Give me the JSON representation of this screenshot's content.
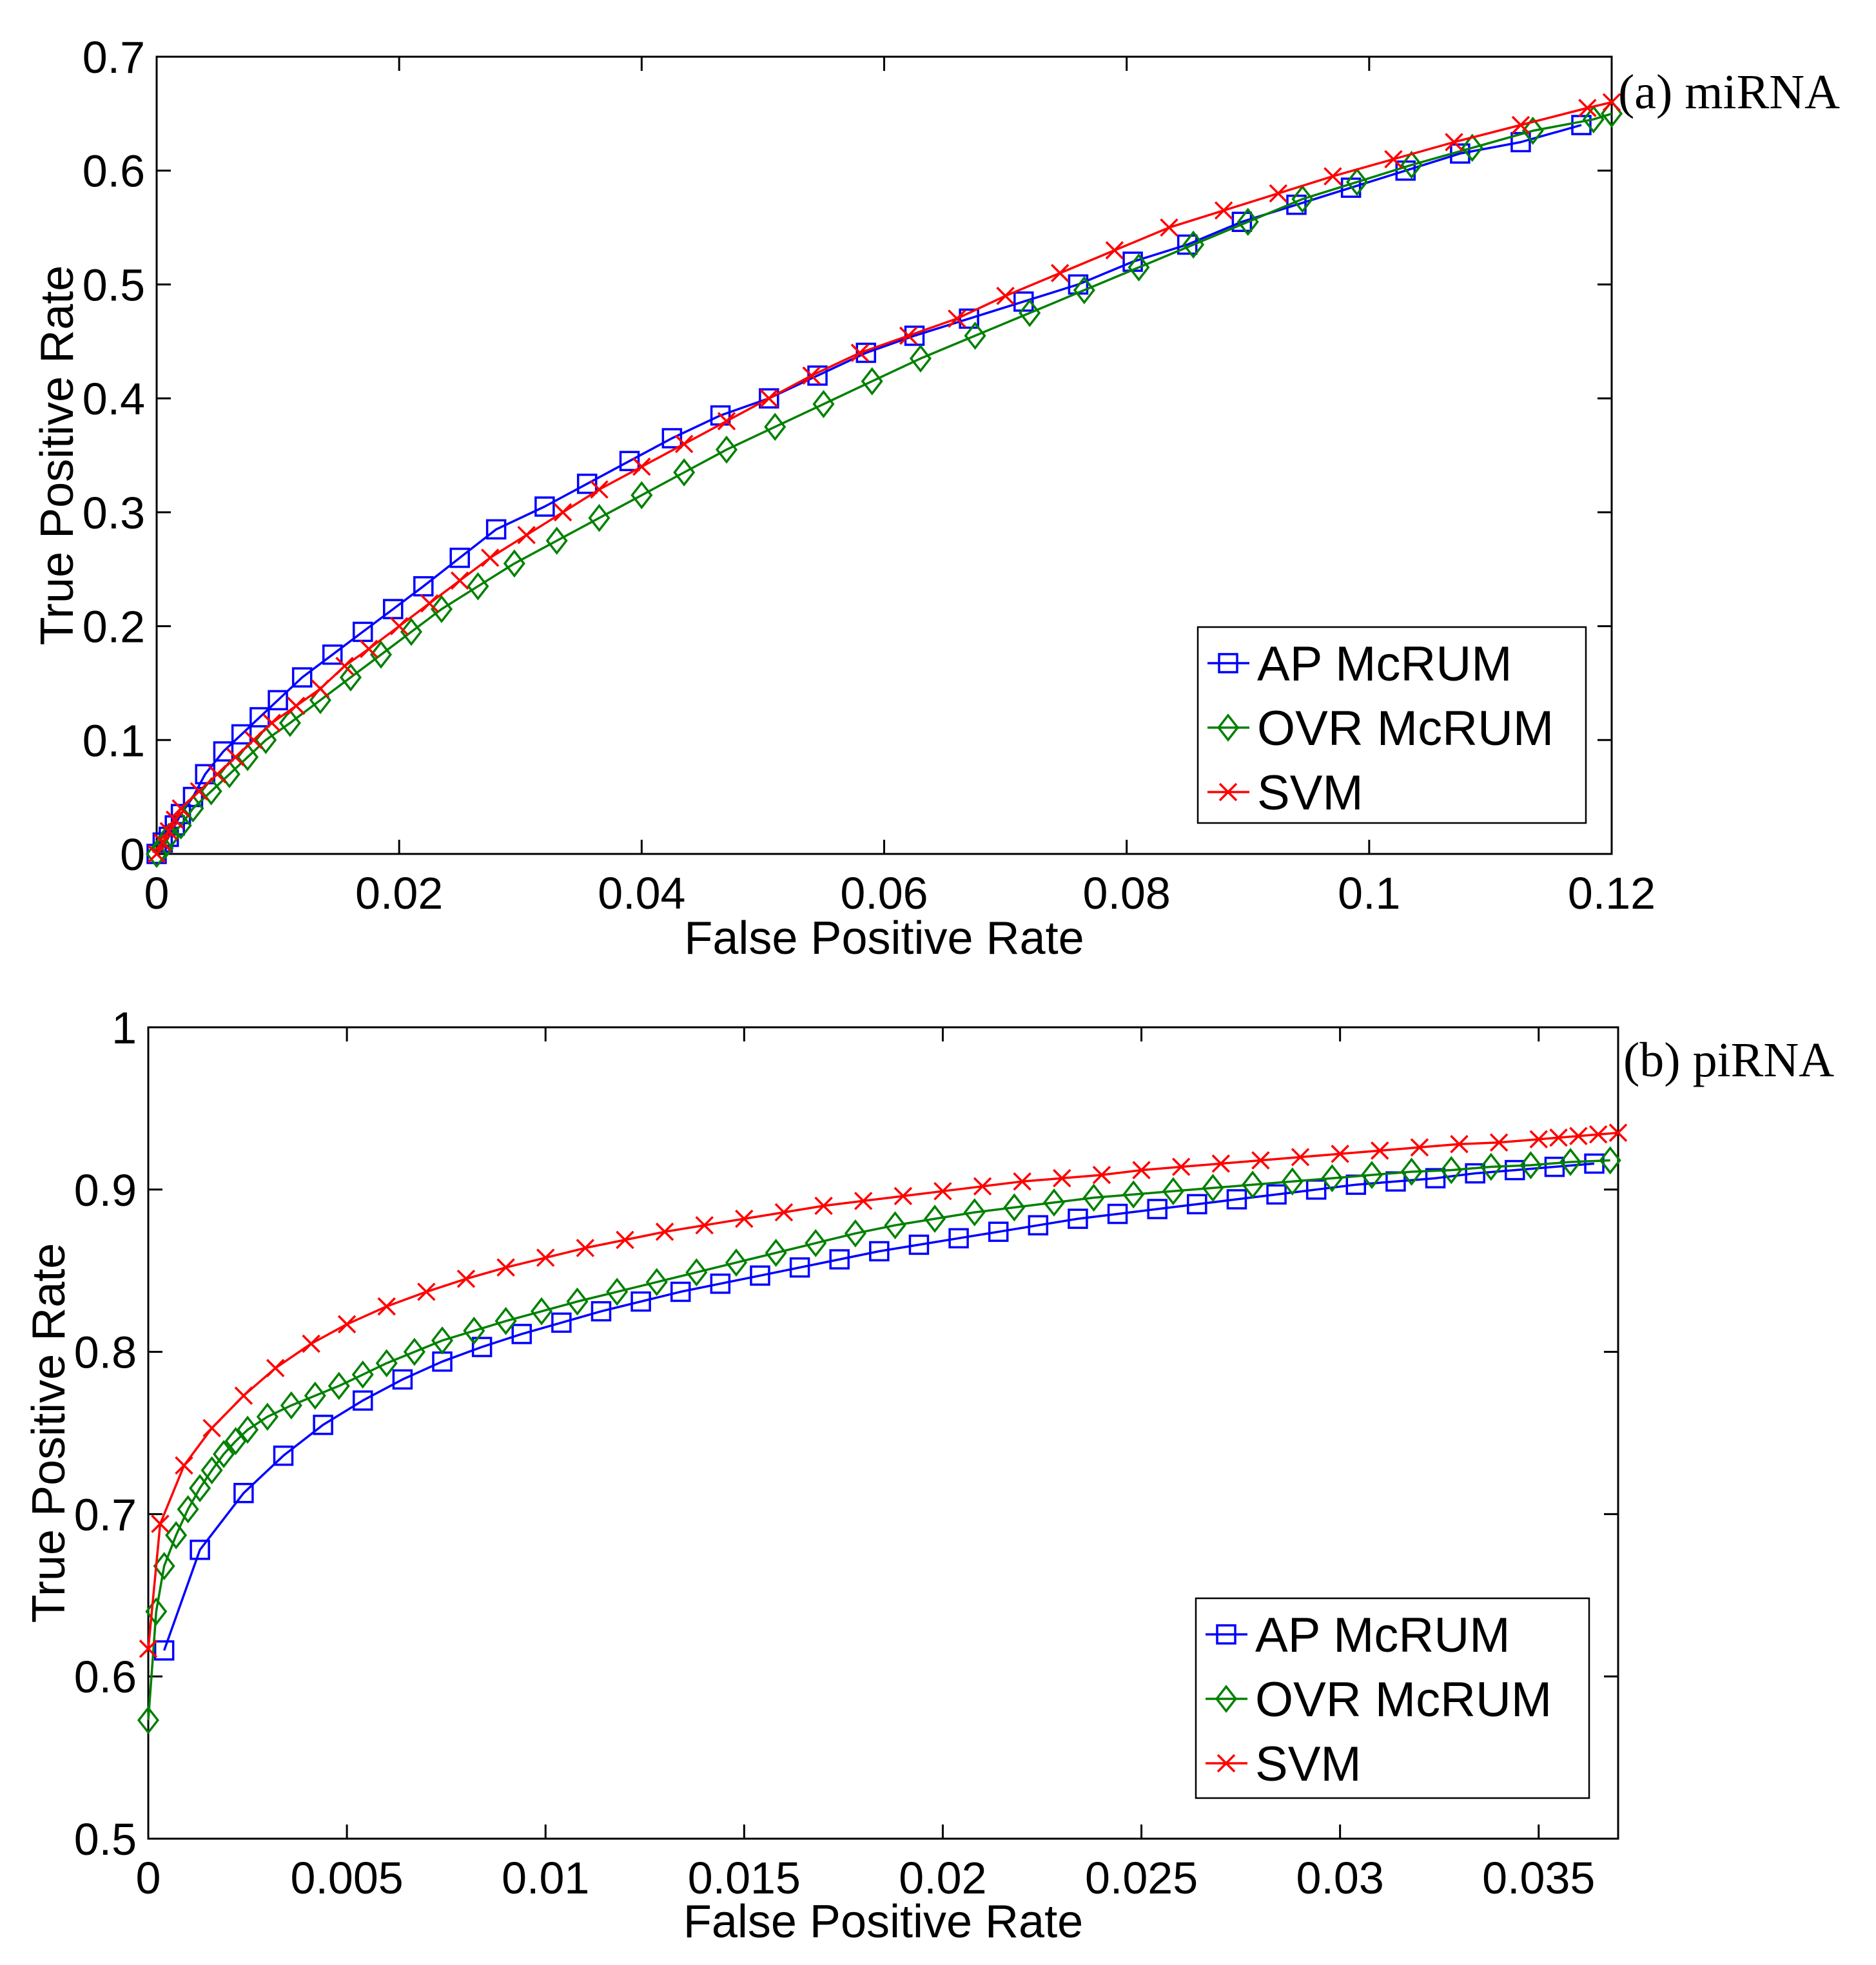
{
  "chart_data": [
    {
      "type": "line",
      "panel_label": "(a) miRNA",
      "xlabel": "False Positive Rate",
      "ylabel": "True Positive Rate",
      "xlim": [
        0,
        0.12
      ],
      "ylim": [
        0,
        0.7
      ],
      "xticks": [
        0,
        0.02,
        0.04,
        0.06,
        0.08,
        0.1,
        0.12
      ],
      "xtick_labels": [
        "0",
        "0.02",
        "0.04",
        "0.06",
        "0.08",
        "0.1",
        "0.12"
      ],
      "yticks": [
        0,
        0.1,
        0.2,
        0.3,
        0.4,
        0.5,
        0.6,
        0.7
      ],
      "ytick_labels": [
        "0",
        "0.1",
        "0.2",
        "0.3",
        "0.4",
        "0.5",
        "0.6",
        "0.7"
      ],
      "grid": false,
      "legend_position": "bottom-right",
      "series": [
        {
          "name": "AP McRUM",
          "color": "#0000ff",
          "marker": "square",
          "x": [
            0,
            0.0005,
            0.001,
            0.0015,
            0.002,
            0.003,
            0.004,
            0.0055,
            0.007,
            0.0085,
            0.01,
            0.012,
            0.0145,
            0.017,
            0.0195,
            0.022,
            0.025,
            0.028,
            0.032,
            0.0355,
            0.039,
            0.0425,
            0.0465,
            0.0505,
            0.0545,
            0.0585,
            0.0625,
            0.067,
            0.0715,
            0.076,
            0.0805,
            0.085,
            0.0895,
            0.094,
            0.0985,
            0.103,
            0.1075,
            0.1125,
            0.1175
          ],
          "y": [
            0,
            0.01,
            0.015,
            0.025,
            0.035,
            0.05,
            0.07,
            0.09,
            0.105,
            0.12,
            0.135,
            0.155,
            0.175,
            0.195,
            0.215,
            0.235,
            0.26,
            0.285,
            0.305,
            0.325,
            0.345,
            0.365,
            0.385,
            0.4,
            0.42,
            0.44,
            0.455,
            0.47,
            0.485,
            0.5,
            0.52,
            0.535,
            0.555,
            0.57,
            0.585,
            0.6,
            0.615,
            0.625,
            0.64
          ]
        },
        {
          "name": "OVR McRUM",
          "color": "#008000",
          "marker": "diamond",
          "x": [
            0,
            0.0005,
            0.001,
            0.002,
            0.003,
            0.0045,
            0.006,
            0.0075,
            0.009,
            0.011,
            0.0135,
            0.016,
            0.0185,
            0.021,
            0.0235,
            0.0265,
            0.0295,
            0.033,
            0.0365,
            0.04,
            0.0435,
            0.047,
            0.051,
            0.055,
            0.059,
            0.063,
            0.0675,
            0.072,
            0.0765,
            0.081,
            0.0855,
            0.09,
            0.0945,
            0.099,
            0.1035,
            0.1085,
            0.1135,
            0.1185,
            0.12
          ],
          "y": [
            0,
            0.005,
            0.015,
            0.025,
            0.04,
            0.055,
            0.07,
            0.085,
            0.1,
            0.115,
            0.135,
            0.155,
            0.175,
            0.195,
            0.215,
            0.235,
            0.255,
            0.275,
            0.295,
            0.315,
            0.335,
            0.355,
            0.375,
            0.395,
            0.415,
            0.435,
            0.455,
            0.475,
            0.495,
            0.515,
            0.535,
            0.555,
            0.575,
            0.59,
            0.605,
            0.62,
            0.635,
            0.645,
            0.65
          ]
        },
        {
          "name": "SVM",
          "color": "#ff0000",
          "marker": "x",
          "x": [
            0,
            0.0005,
            0.001,
            0.0015,
            0.002,
            0.0035,
            0.005,
            0.0065,
            0.008,
            0.0095,
            0.0115,
            0.0135,
            0.0155,
            0.0175,
            0.02,
            0.0225,
            0.025,
            0.0275,
            0.0305,
            0.0335,
            0.0365,
            0.04,
            0.0435,
            0.047,
            0.0505,
            0.054,
            0.058,
            0.062,
            0.066,
            0.07,
            0.0745,
            0.079,
            0.0835,
            0.088,
            0.0925,
            0.097,
            0.102,
            0.107,
            0.1125,
            0.118,
            0.12
          ],
          "y": [
            0,
            0.01,
            0.02,
            0.03,
            0.04,
            0.055,
            0.07,
            0.085,
            0.1,
            0.115,
            0.13,
            0.145,
            0.165,
            0.18,
            0.2,
            0.22,
            0.24,
            0.26,
            0.28,
            0.3,
            0.32,
            0.34,
            0.36,
            0.38,
            0.4,
            0.42,
            0.44,
            0.455,
            0.47,
            0.49,
            0.51,
            0.53,
            0.55,
            0.565,
            0.58,
            0.595,
            0.61,
            0.625,
            0.64,
            0.655,
            0.66
          ]
        }
      ]
    },
    {
      "type": "line",
      "panel_label": "(b) piRNA",
      "xlabel": "False Positive Rate",
      "ylabel": "True Positive Rate",
      "xlim": [
        0,
        0.037
      ],
      "ylim": [
        0.5,
        1
      ],
      "xticks": [
        0,
        0.005,
        0.01,
        0.015,
        0.02,
        0.025,
        0.03,
        0.035
      ],
      "xtick_labels": [
        "0",
        "0.005",
        "0.01",
        "0.015",
        "0.02",
        "0.025",
        "0.03",
        "0.035"
      ],
      "yticks": [
        0.5,
        0.6,
        0.7,
        0.8,
        0.9,
        1.0
      ],
      "ytick_labels": [
        "0.5",
        "0.6",
        "0.7",
        "0.8",
        "0.9",
        "1"
      ],
      "grid": false,
      "legend_position": "bottom-right",
      "series": [
        {
          "name": "AP McRUM",
          "color": "#0000ff",
          "marker": "square",
          "x": [
            0.0004,
            0.0013,
            0.0024,
            0.0034,
            0.0044,
            0.0054,
            0.0064,
            0.0074,
            0.0084,
            0.0094,
            0.0104,
            0.0114,
            0.0124,
            0.0134,
            0.0144,
            0.0154,
            0.0164,
            0.0174,
            0.0184,
            0.0194,
            0.0204,
            0.0214,
            0.0224,
            0.0234,
            0.0244,
            0.0254,
            0.0264,
            0.0274,
            0.0284,
            0.0294,
            0.0304,
            0.0314,
            0.0324,
            0.0334,
            0.0344,
            0.0354,
            0.0364
          ],
          "y": [
            0.616,
            0.678,
            0.713,
            0.736,
            0.755,
            0.77,
            0.783,
            0.794,
            0.803,
            0.811,
            0.818,
            0.825,
            0.831,
            0.837,
            0.842,
            0.847,
            0.852,
            0.857,
            0.862,
            0.866,
            0.87,
            0.874,
            0.878,
            0.882,
            0.885,
            0.888,
            0.891,
            0.894,
            0.897,
            0.9,
            0.903,
            0.905,
            0.907,
            0.91,
            0.912,
            0.914,
            0.916
          ]
        },
        {
          "name": "OVR McRUM",
          "color": "#008000",
          "marker": "diamond",
          "x": [
            0,
            0.0002,
            0.0004,
            0.0007,
            0.001,
            0.0013,
            0.0016,
            0.0019,
            0.0022,
            0.0025,
            0.003,
            0.0036,
            0.0042,
            0.0048,
            0.0054,
            0.006,
            0.0067,
            0.0074,
            0.0082,
            0.009,
            0.0099,
            0.0108,
            0.0118,
            0.0128,
            0.0138,
            0.0148,
            0.0158,
            0.0168,
            0.0178,
            0.0188,
            0.0198,
            0.0208,
            0.0218,
            0.0228,
            0.0238,
            0.0248,
            0.0258,
            0.0268,
            0.0278,
            0.0288,
            0.0298,
            0.0308,
            0.0318,
            0.0328,
            0.0338,
            0.0348,
            0.0358,
            0.0368
          ],
          "y": [
            0.573,
            0.64,
            0.668,
            0.687,
            0.703,
            0.716,
            0.727,
            0.737,
            0.745,
            0.752,
            0.76,
            0.767,
            0.773,
            0.779,
            0.786,
            0.793,
            0.8,
            0.807,
            0.813,
            0.819,
            0.825,
            0.831,
            0.837,
            0.843,
            0.849,
            0.855,
            0.861,
            0.867,
            0.873,
            0.878,
            0.882,
            0.886,
            0.889,
            0.892,
            0.895,
            0.897,
            0.899,
            0.901,
            0.903,
            0.905,
            0.907,
            0.909,
            0.911,
            0.912,
            0.914,
            0.915,
            0.917,
            0.918
          ]
        },
        {
          "name": "SVM",
          "color": "#ff0000",
          "marker": "x",
          "x": [
            0,
            0.0003,
            0.0009,
            0.0016,
            0.0024,
            0.0032,
            0.0041,
            0.005,
            0.006,
            0.007,
            0.008,
            0.009,
            0.01,
            0.011,
            0.012,
            0.013,
            0.014,
            0.015,
            0.016,
            0.017,
            0.018,
            0.019,
            0.02,
            0.021,
            0.022,
            0.023,
            0.024,
            0.025,
            0.026,
            0.027,
            0.028,
            0.029,
            0.03,
            0.031,
            0.032,
            0.033,
            0.034,
            0.035,
            0.0355,
            0.036,
            0.0365,
            0.037
          ],
          "y": [
            0.617,
            0.694,
            0.73,
            0.753,
            0.773,
            0.79,
            0.805,
            0.817,
            0.828,
            0.837,
            0.845,
            0.852,
            0.858,
            0.864,
            0.869,
            0.874,
            0.878,
            0.882,
            0.886,
            0.89,
            0.893,
            0.896,
            0.899,
            0.902,
            0.905,
            0.907,
            0.909,
            0.912,
            0.914,
            0.916,
            0.918,
            0.92,
            0.922,
            0.924,
            0.926,
            0.928,
            0.929,
            0.931,
            0.932,
            0.933,
            0.934,
            0.935
          ]
        }
      ]
    }
  ]
}
